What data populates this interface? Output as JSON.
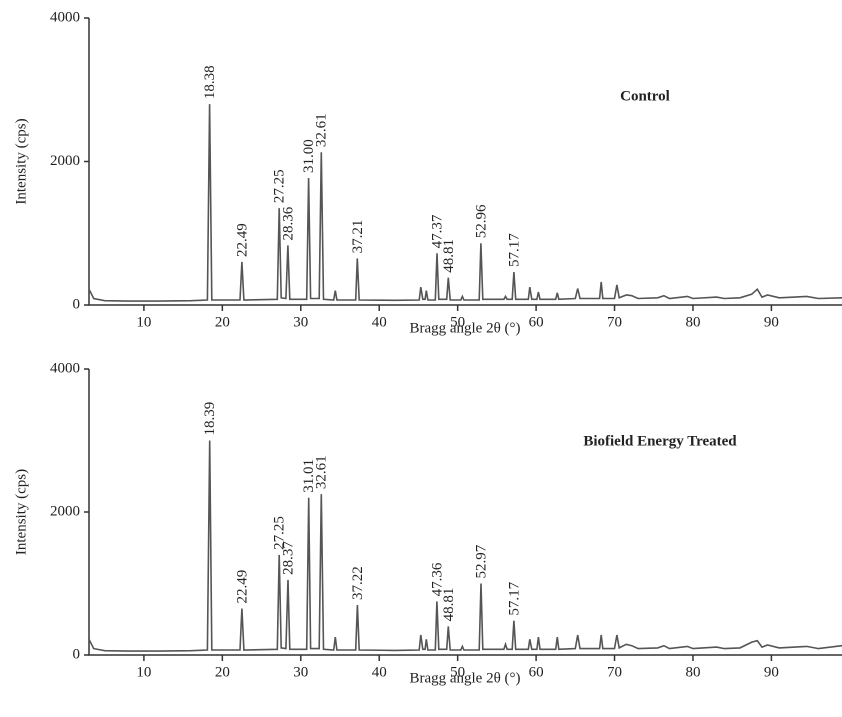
{
  "chart_data": [
    {
      "type": "line",
      "title": "Control",
      "xlabel": "Bragg angle 2θ (°)",
      "ylabel": "Intensity (cps)",
      "color": "#555555",
      "xlim": [
        3,
        99
      ],
      "xticks": [
        10,
        20,
        30,
        40,
        50,
        60,
        70,
        80,
        90
      ],
      "ylim": [
        0,
        4000
      ],
      "yticks": [
        0,
        2000,
        4000
      ],
      "x": [
        3,
        3.6,
        5,
        8,
        12,
        16,
        18.1,
        18.38,
        18.65,
        22.25,
        22.49,
        22.75,
        27,
        27.25,
        27.5,
        28.1,
        28.36,
        28.6,
        30.75,
        31,
        31.25,
        32.35,
        32.61,
        32.9,
        34.2,
        34.4,
        34.6,
        37,
        37.21,
        37.45,
        42,
        45.1,
        45.3,
        45.55,
        45.85,
        46,
        46.2,
        47.15,
        47.37,
        47.6,
        48.6,
        48.81,
        49.05,
        50.4,
        50.6,
        50.8,
        52.75,
        52.96,
        53.2,
        55.9,
        56.1,
        56.3,
        56.95,
        57.17,
        57.4,
        59,
        59.2,
        59.45,
        60.1,
        60.3,
        60.5,
        62.5,
        62.7,
        62.9,
        65,
        65.3,
        65.6,
        68.1,
        68.3,
        68.5,
        70,
        70.3,
        70.6,
        71.5,
        72.2,
        73,
        75.5,
        76.3,
        77,
        79.3,
        80,
        83,
        84,
        86,
        87.5,
        88.2,
        88.8,
        89.5,
        91,
        93,
        94.5,
        96,
        99
      ],
      "values": [
        220,
        90,
        60,
        55,
        55,
        60,
        70,
        2800,
        70,
        70,
        600,
        70,
        80,
        1350,
        100,
        90,
        830,
        80,
        80,
        1770,
        90,
        90,
        2130,
        80,
        70,
        200,
        70,
        70,
        650,
        70,
        65,
        70,
        250,
        80,
        80,
        200,
        70,
        70,
        720,
        80,
        80,
        380,
        70,
        70,
        120,
        70,
        70,
        860,
        80,
        80,
        120,
        80,
        80,
        460,
        80,
        80,
        250,
        80,
        80,
        180,
        80,
        80,
        170,
        80,
        90,
        230,
        90,
        90,
        320,
        90,
        90,
        280,
        100,
        140,
        130,
        90,
        100,
        130,
        90,
        120,
        90,
        110,
        90,
        100,
        150,
        220,
        110,
        140,
        100,
        110,
        120,
        90,
        100
      ],
      "peak_labels": [
        18.38,
        22.49,
        27.25,
        28.36,
        {
          "value": 31,
          "label": "31.00"
        },
        32.61,
        37.21,
        47.37,
        48.81,
        52.96,
        57.17
      ]
    },
    {
      "type": "line",
      "title": "Biofield Energy Treated",
      "xlabel": "Bragg angle 2θ (°)",
      "ylabel": "Intensity (cps)",
      "color": "#555555",
      "xlim": [
        3,
        99
      ],
      "xticks": [
        10,
        20,
        30,
        40,
        50,
        60,
        70,
        80,
        90
      ],
      "ylim": [
        0,
        4000
      ],
      "yticks": [
        0,
        2000,
        4000
      ],
      "x": [
        3,
        3.6,
        5,
        8,
        12,
        16,
        18.1,
        18.39,
        18.65,
        22.25,
        22.49,
        22.75,
        27,
        27.25,
        27.5,
        28.1,
        28.37,
        28.6,
        30.75,
        31.01,
        31.25,
        32.35,
        32.61,
        32.9,
        34.2,
        34.4,
        34.6,
        37,
        37.22,
        37.45,
        42,
        45.1,
        45.3,
        45.55,
        45.85,
        46,
        46.2,
        47.15,
        47.36,
        47.6,
        48.6,
        48.81,
        49.05,
        50.4,
        50.6,
        50.8,
        52.75,
        52.97,
        53.2,
        55.9,
        56.1,
        56.3,
        56.95,
        57.17,
        57.4,
        59,
        59.2,
        59.45,
        60.1,
        60.3,
        60.5,
        62.5,
        62.7,
        62.9,
        65,
        65.3,
        65.6,
        68.1,
        68.3,
        68.5,
        70,
        70.3,
        70.6,
        71.5,
        72.2,
        73,
        75.5,
        76.3,
        77,
        79.3,
        80,
        83,
        84,
        86,
        87.5,
        88.2,
        88.8,
        89.5,
        91,
        93,
        94.5,
        96,
        99
      ],
      "values": [
        220,
        90,
        60,
        55,
        55,
        60,
        70,
        3000,
        70,
        70,
        650,
        70,
        80,
        1400,
        100,
        90,
        1050,
        80,
        80,
        2200,
        90,
        90,
        2250,
        80,
        70,
        250,
        70,
        70,
        700,
        70,
        65,
        70,
        280,
        80,
        80,
        220,
        70,
        70,
        750,
        80,
        80,
        400,
        70,
        70,
        120,
        70,
        70,
        1000,
        80,
        80,
        150,
        80,
        80,
        480,
        80,
        80,
        220,
        80,
        80,
        250,
        80,
        80,
        250,
        80,
        90,
        280,
        90,
        90,
        280,
        90,
        90,
        280,
        100,
        150,
        130,
        90,
        100,
        130,
        90,
        120,
        90,
        110,
        90,
        100,
        180,
        200,
        110,
        140,
        100,
        110,
        120,
        90,
        130
      ],
      "peak_labels": [
        18.39,
        22.49,
        27.25,
        28.37,
        31.01,
        32.61,
        37.22,
        47.36,
        48.81,
        52.97,
        57.17
      ]
    }
  ]
}
